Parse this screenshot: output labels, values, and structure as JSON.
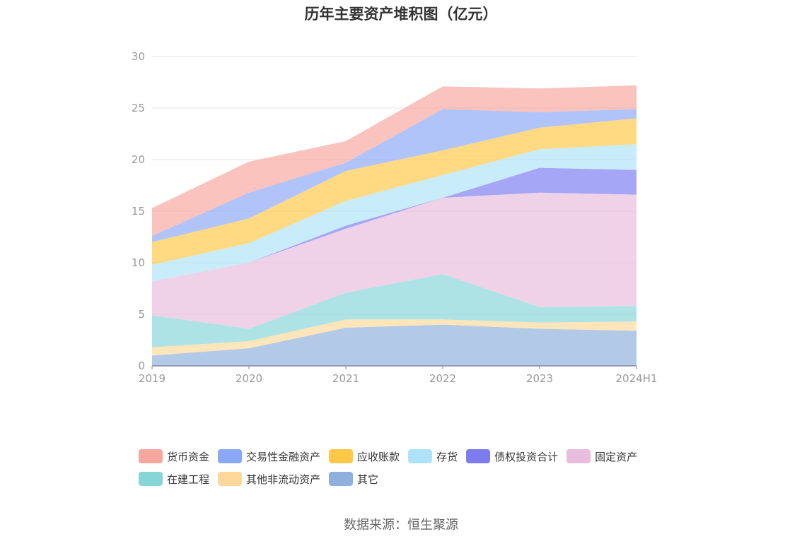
{
  "chart_data": {
    "type": "area",
    "stacked": true,
    "title": "历年主要资产堆积图（亿元）",
    "categories": [
      "2019",
      "2020",
      "2021",
      "2022",
      "2023",
      "2024H1"
    ],
    "ylim": [
      0,
      30
    ],
    "yticks": [
      0,
      5,
      10,
      15,
      20,
      25,
      30
    ],
    "grid": true,
    "legend_position": "bottom",
    "series": [
      {
        "name": "其它",
        "color": "#8fb0dd",
        "values": [
          1.0,
          1.7,
          3.7,
          4.0,
          3.6,
          3.4
        ]
      },
      {
        "name": "其他非流动资产",
        "color": "#fdd89a",
        "values": [
          0.8,
          0.7,
          0.8,
          0.5,
          0.6,
          0.9
        ]
      },
      {
        "name": "在建工程",
        "color": "#88d5d8",
        "values": [
          3.1,
          1.2,
          2.6,
          4.4,
          1.5,
          1.5
        ]
      },
      {
        "name": "固定资产",
        "color": "#e8bddd",
        "values": [
          3.3,
          6.4,
          6.2,
          7.4,
          11.1,
          10.8
        ]
      },
      {
        "name": "债权投资合计",
        "color": "#7a7cf0",
        "values": [
          0.0,
          0.0,
          0.3,
          0.0,
          2.4,
          2.4
        ]
      },
      {
        "name": "存货",
        "color": "#aee3f7",
        "values": [
          1.6,
          1.9,
          2.4,
          2.2,
          1.8,
          2.5
        ]
      },
      {
        "name": "应收账款",
        "color": "#ffc847",
        "values": [
          2.2,
          2.4,
          2.9,
          2.4,
          2.1,
          2.5
        ]
      },
      {
        "name": "交易性金融资产",
        "color": "#8aa8f8",
        "values": [
          0.6,
          2.5,
          0.8,
          4.0,
          1.5,
          0.9
        ]
      },
      {
        "name": "货币资金",
        "color": "#f8a79e",
        "values": [
          2.7,
          3.0,
          2.1,
          2.2,
          2.3,
          2.3
        ]
      }
    ]
  },
  "legend_rows": [
    [
      {
        "label": "货币资金",
        "color": "#f8a79e"
      },
      {
        "label": "交易性金融资产",
        "color": "#8aa8f8"
      },
      {
        "label": "应收账款",
        "color": "#ffc847"
      },
      {
        "label": "存货",
        "color": "#aee3f7"
      },
      {
        "label": "债权投资合计",
        "color": "#7a7cf0"
      },
      {
        "label": "固定资产",
        "color": "#e8bddd"
      }
    ],
    [
      {
        "label": "在建工程",
        "color": "#88d5d8"
      },
      {
        "label": "其他非流动资产",
        "color": "#fdd89a"
      },
      {
        "label": "其它",
        "color": "#8fb0dd"
      }
    ]
  ],
  "source": "数据来源：恒生聚源"
}
